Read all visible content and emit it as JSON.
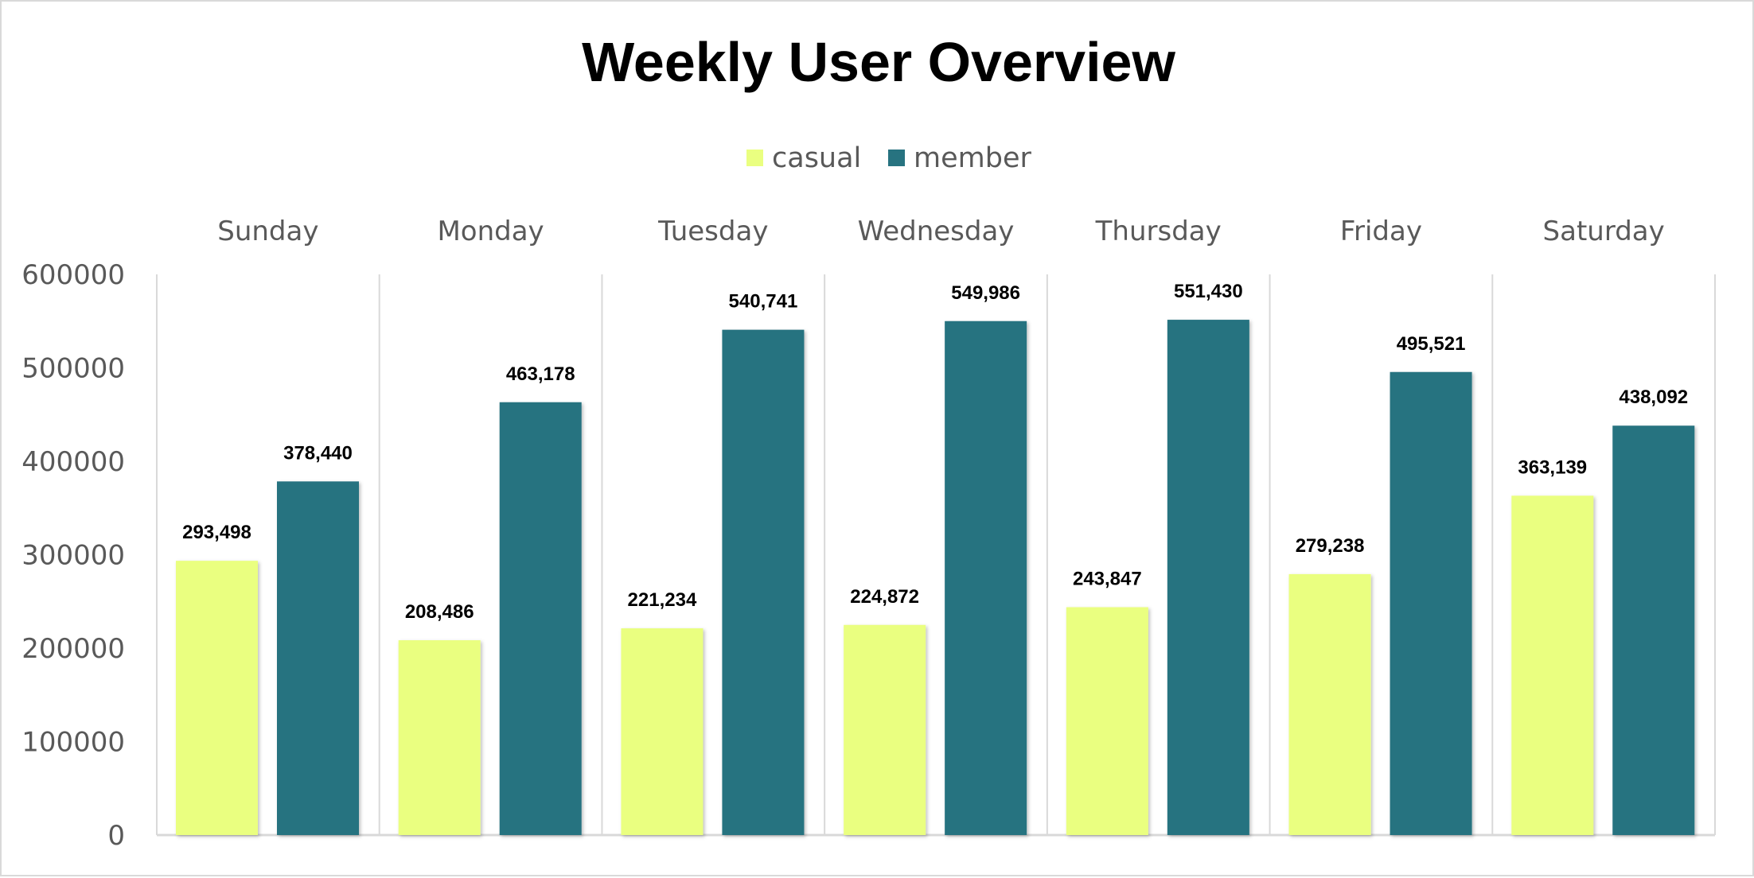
{
  "chart_data": {
    "type": "bar",
    "title": "Weekly User Overview",
    "categories": [
      "Sunday",
      "Monday",
      "Tuesday",
      "Wednesday",
      "Thursday",
      "Friday",
      "Saturday"
    ],
    "series": [
      {
        "name": "casual",
        "color": "#EAFF80",
        "values": [
          293498,
          208486,
          221234,
          224872,
          243847,
          279238,
          363139
        ],
        "labels": [
          "293,498",
          "208,486",
          "221,234",
          "224,872",
          "243,847",
          "279,238",
          "363,139"
        ]
      },
      {
        "name": "member",
        "color": "#277380",
        "values": [
          378440,
          463178,
          540741,
          549986,
          551430,
          495521,
          438092
        ],
        "labels": [
          "378,440",
          "463,178",
          "540,741",
          "549,986",
          "551,430",
          "495,521",
          "438,092"
        ]
      }
    ],
    "yticks": [
      "0",
      "100000",
      "200000",
      "300000",
      "400000",
      "500000",
      "600000"
    ],
    "ylim": [
      0,
      600000
    ],
    "legend_position": "top",
    "category_position": "top",
    "xlabel": "",
    "ylabel": ""
  }
}
